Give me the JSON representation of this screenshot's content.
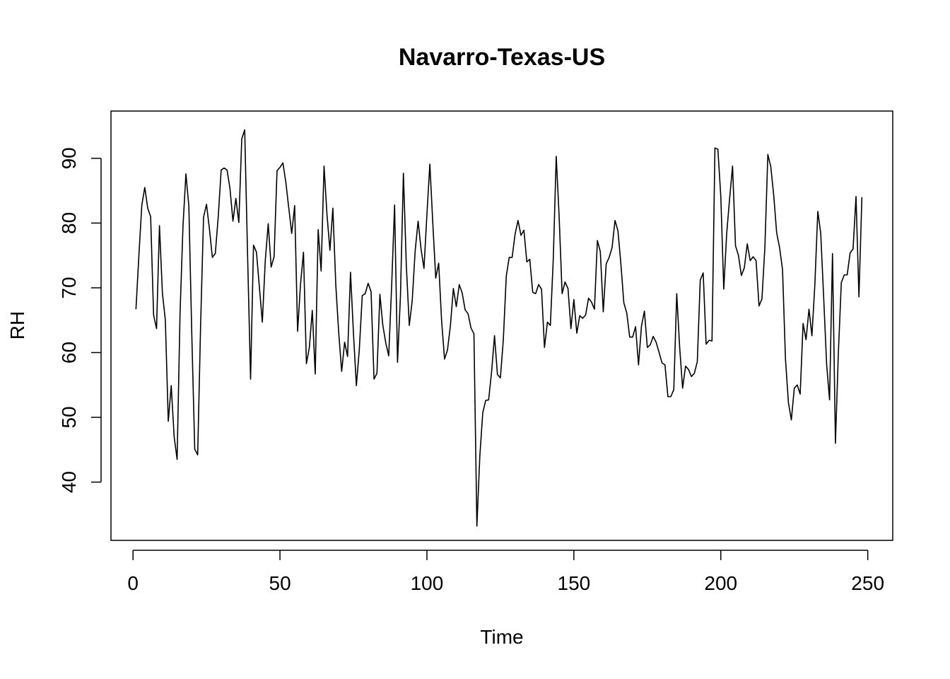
{
  "chart_data": {
    "type": "line",
    "title": "Navarro-Texas-US",
    "xlabel": "Time",
    "ylabel": "RH",
    "xlim": [
      -7.5,
      258.5
    ],
    "ylim": [
      31,
      97.3
    ],
    "xticks": [
      0,
      50,
      100,
      150,
      200,
      250
    ],
    "yticks": [
      40,
      50,
      60,
      70,
      80,
      90
    ],
    "grid": false,
    "legend": "none",
    "line_color": "#000000",
    "series": [
      {
        "x": [
          1,
          2,
          3,
          4,
          5,
          6,
          7,
          8,
          9,
          10,
          11,
          12,
          13,
          14,
          15,
          16,
          17,
          18,
          19,
          20,
          21,
          22,
          23,
          24,
          25,
          26,
          27,
          28,
          29,
          30,
          31,
          32,
          33,
          34,
          35,
          36,
          37,
          38,
          39,
          40,
          41,
          42,
          43,
          44,
          45,
          46,
          47,
          48,
          49,
          50,
          51,
          52,
          53,
          54,
          55,
          56,
          57,
          58,
          59,
          60,
          61,
          62,
          63,
          64,
          65,
          66,
          67,
          68,
          69,
          70,
          71,
          72,
          73,
          74,
          75,
          76,
          77,
          78,
          79,
          80,
          81,
          82,
          83,
          84,
          85,
          86,
          87,
          88,
          89,
          90,
          91,
          92,
          93,
          94,
          95,
          96,
          97,
          98,
          99,
          100,
          101,
          102,
          103,
          104,
          105,
          106,
          107,
          108,
          109,
          110,
          111,
          112,
          113,
          114,
          115,
          116,
          117,
          118,
          119,
          120,
          121,
          122,
          123,
          124,
          125,
          126,
          127,
          128,
          129,
          130,
          131,
          132,
          133,
          134,
          135,
          136,
          137,
          138,
          139,
          140,
          141,
          142,
          143,
          144,
          145,
          146,
          147,
          148,
          149,
          150,
          151,
          152,
          153,
          154,
          155,
          156,
          157,
          158,
          159,
          160,
          161,
          162,
          163,
          164,
          165,
          166,
          167,
          168,
          169,
          170,
          171,
          172,
          173,
          174,
          175,
          176,
          177,
          178,
          179,
          180,
          181,
          182,
          183,
          184,
          185,
          186,
          187,
          188,
          189,
          190,
          191,
          192,
          193,
          194,
          195,
          196,
          197,
          198,
          199,
          200,
          201,
          202,
          203,
          204,
          205,
          206,
          207,
          208,
          209,
          210,
          211,
          212,
          213,
          214,
          215,
          216,
          217,
          218,
          219,
          220,
          221,
          222,
          223,
          224,
          225,
          226,
          227,
          228,
          229,
          230,
          231,
          232,
          233,
          234,
          235,
          236,
          237,
          238,
          239,
          240,
          241,
          242,
          243,
          244,
          245,
          246,
          247,
          248
        ],
        "values": [
          66.7,
          75.0,
          82.8,
          85.5,
          82.3,
          81.0,
          65.8,
          63.7,
          79.6,
          69.2,
          65.0,
          49.4,
          54.9,
          47.0,
          43.5,
          66.0,
          79.5,
          87.6,
          82.6,
          62.8,
          45.1,
          44.2,
          64.3,
          80.9,
          82.9,
          79.1,
          74.7,
          75.3,
          81.0,
          88.2,
          88.5,
          88.2,
          85.3,
          80.3,
          83.8,
          80.1,
          93.0,
          94.4,
          74.7,
          55.9,
          76.6,
          75.5,
          70.1,
          64.7,
          74.2,
          79.9,
          73.2,
          74.8,
          88.1,
          88.6,
          89.3,
          86.3,
          82.3,
          78.4,
          82.7,
          63.3,
          70.6,
          75.5,
          58.3,
          60.8,
          66.5,
          56.7,
          79.0,
          72.6,
          88.8,
          81.3,
          75.8,
          82.3,
          70.4,
          63.0,
          57.1,
          61.6,
          59.4,
          72.4,
          63.0,
          54.9,
          60.5,
          68.8,
          69.1,
          70.7,
          69.4,
          55.9,
          56.8,
          69.0,
          64.2,
          61.5,
          59.5,
          70.3,
          82.8,
          58.5,
          68.8,
          87.7,
          73.4,
          64.2,
          68.0,
          75.7,
          80.3,
          76.0,
          73.0,
          81.3,
          89.1,
          80.0,
          71.5,
          73.8,
          64.9,
          59.0,
          60.4,
          64.2,
          69.9,
          67.1,
          70.5,
          69.2,
          66.6,
          66.0,
          63.8,
          62.9,
          33.2,
          44.0,
          50.7,
          52.6,
          52.7,
          57.0,
          62.6,
          56.6,
          56.1,
          62.0,
          71.8,
          74.7,
          74.7,
          78.3,
          80.4,
          78.1,
          78.9,
          74.0,
          74.4,
          69.3,
          69.1,
          70.5,
          69.8,
          60.8,
          64.7,
          64.2,
          74.5,
          90.3,
          80.9,
          69.1,
          70.9,
          69.9,
          63.7,
          68.2,
          63.0,
          65.7,
          65.3,
          65.8,
          68.4,
          67.8,
          66.7,
          77.3,
          75.6,
          66.3,
          73.7,
          74.7,
          76.2,
          80.4,
          78.8,
          73.7,
          67.7,
          66.1,
          62.4,
          62.4,
          64.0,
          58.1,
          64.1,
          66.4,
          60.8,
          61.2,
          62.5,
          61.6,
          60.0,
          58.4,
          58.1,
          53.2,
          53.2,
          54.3,
          69.1,
          60.8,
          54.5,
          57.9,
          57.4,
          56.3,
          56.8,
          58.6,
          71.2,
          72.3,
          61.3,
          61.9,
          61.8,
          91.6,
          91.4,
          84.1,
          69.8,
          78.4,
          83.8,
          88.8,
          76.5,
          75.0,
          71.9,
          73.1,
          76.8,
          74.2,
          74.8,
          74.2,
          67.2,
          68.3,
          76.3,
          90.6,
          88.7,
          84.3,
          78.5,
          76.2,
          72.8,
          59.0,
          52.3,
          49.6,
          54.5,
          55.0,
          53.6,
          64.5,
          62.0,
          66.7,
          62.6,
          70.5,
          81.8,
          78.4,
          68.5,
          58.2,
          52.7,
          75.3,
          46.0,
          60.0,
          70.8,
          72.0,
          72.0,
          75.4,
          76.0,
          84.1,
          68.6,
          84.0
        ]
      }
    ]
  }
}
